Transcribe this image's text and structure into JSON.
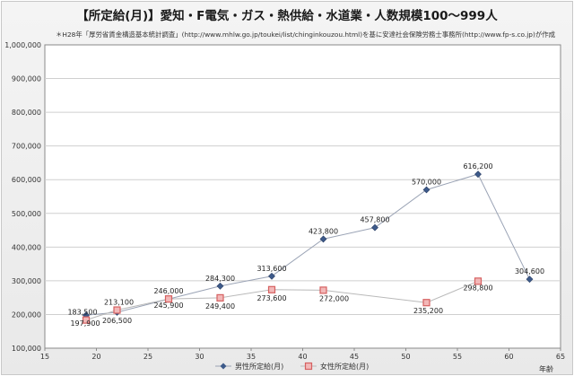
{
  "chart_data": {
    "type": "line",
    "title": "【所定給(月)】愛知・F電気・ガス・熱供給・水道業・人数規模100～999人",
    "source": "＊H28年「厚労省賃金構造基本統計調査」(http://www.mhlw.go.jp/toukei/list/chinginkouzou.html)を基に安達社会保険労務士事務所(http://www.fp-s.co.jp)が作成",
    "xlabel": "年齢",
    "ylabel": "",
    "xlim": [
      15,
      65
    ],
    "ylim": [
      100000,
      1000000
    ],
    "x_ticks": [
      "15",
      "20",
      "25",
      "30",
      "35",
      "40",
      "45",
      "50",
      "55",
      "60",
      "65"
    ],
    "y_ticks": [
      "100,000",
      "200,000",
      "300,000",
      "400,000",
      "500,000",
      "600,000",
      "700,000",
      "800,000",
      "900,000",
      "1,000,000"
    ],
    "grid": true,
    "legend_position": "bottom",
    "series": [
      {
        "name": "男性所定給(月)",
        "color": "#3d5a8a",
        "marker": "diamond",
        "points": [
          {
            "x": 19,
            "y": 197900,
            "label": "197,900"
          },
          {
            "x": 22,
            "y": 206500,
            "label": "206,500"
          },
          {
            "x": 27,
            "y": 245900,
            "label": "245,900"
          },
          {
            "x": 32,
            "y": 284300,
            "label": "284,300"
          },
          {
            "x": 37,
            "y": 313600,
            "label": "313,600"
          },
          {
            "x": 42,
            "y": 423800,
            "label": "423,800"
          },
          {
            "x": 47,
            "y": 457800,
            "label": "457,800"
          },
          {
            "x": 52,
            "y": 570000,
            "label": "570,000"
          },
          {
            "x": 57,
            "y": 616200,
            "label": "616,200"
          },
          {
            "x": 62,
            "y": 304600,
            "label": "304,600"
          }
        ]
      },
      {
        "name": "女性所定給(月)",
        "color": "#d66060",
        "marker": "square",
        "points": [
          {
            "x": 19,
            "y": 183500,
            "label": "183,500"
          },
          {
            "x": 22,
            "y": 213100,
            "label": "213,100"
          },
          {
            "x": 27,
            "y": 246000,
            "label": "246,000"
          },
          {
            "x": 32,
            "y": 249400,
            "label": "249,400"
          },
          {
            "x": 37,
            "y": 273600,
            "label": "273,600"
          },
          {
            "x": 42,
            "y": 272000,
            "label": "272,000"
          },
          {
            "x": 52,
            "y": 235200,
            "label": "235,200"
          },
          {
            "x": 57,
            "y": 298800,
            "label": "298,800"
          }
        ]
      }
    ]
  }
}
